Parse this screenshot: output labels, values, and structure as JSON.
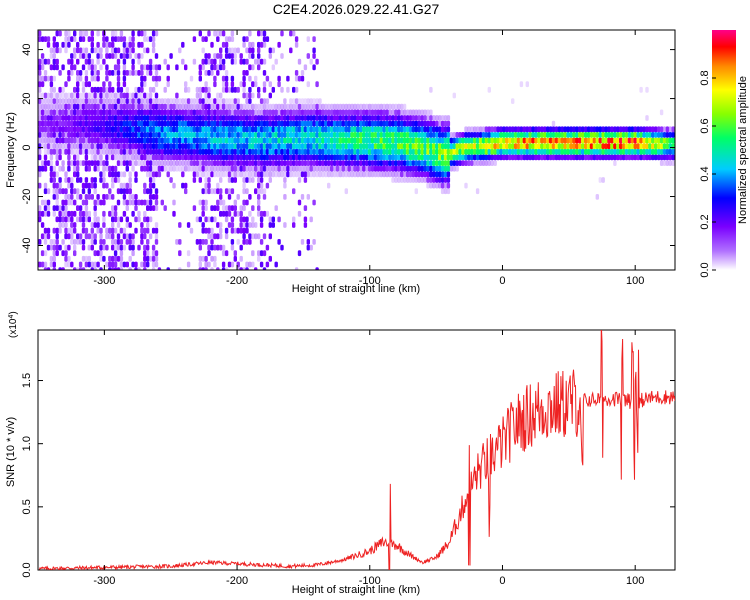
{
  "figure": {
    "title": "C2E4.2026.029.22.41.G27"
  },
  "chart_data": [
    {
      "type": "heatmap",
      "xlabel": "Height of straight line (km)",
      "ylabel": "Frequency (Hz)",
      "xlim": [
        -350,
        130
      ],
      "ylim": [
        -50,
        48
      ],
      "xticks": [
        -300,
        -200,
        -100,
        0,
        100
      ],
      "yticks": [
        -40,
        -20,
        0,
        20,
        40
      ],
      "colorbar": {
        "label": "Normalized spectral amplitude",
        "range": [
          0,
          1
        ],
        "ticks": [
          "0.0",
          "0.2",
          "0.4",
          "0.6",
          "0.8"
        ],
        "colormap": [
          "#ffffff",
          "#7a00ff",
          "#0000ff",
          "#00ffff",
          "#00ff00",
          "#ffff00",
          "#ff0000",
          "#ff00aa"
        ]
      },
      "ridge": {
        "x": [
          -350,
          -300,
          -260,
          -220,
          -180,
          -150,
          -120,
          -100,
          -80,
          -60,
          -45,
          -30,
          -10,
          0,
          30,
          60,
          100,
          130
        ],
        "frequency": [
          10,
          9,
          6,
          4,
          3,
          4,
          3,
          3,
          2,
          0,
          -3,
          0,
          1,
          2,
          2,
          2,
          2,
          1
        ],
        "peak_amplitude": [
          0.15,
          0.25,
          0.42,
          0.45,
          0.48,
          0.5,
          0.55,
          0.6,
          0.62,
          0.65,
          0.7,
          0.75,
          0.8,
          0.85,
          0.9,
          0.92,
          0.92,
          0.6
        ]
      },
      "noise_region": {
        "x_from": -350,
        "x_to": -140
      }
    },
    {
      "type": "line",
      "xlabel": "Height of straight line (km)",
      "ylabel": "SNR (10 * v/v)",
      "scale_label": "(x10^4)",
      "xlim": [
        -350,
        130
      ],
      "ylim": [
        0,
        1.9
      ],
      "xticks": [
        -300,
        -200,
        -100,
        0,
        100
      ],
      "yticks": [
        "0.0",
        "0.5",
        "1.0",
        "1.5"
      ],
      "color": "#ee2222",
      "series": [
        {
          "x": [
            -350,
            -300,
            -250,
            -230,
            -220,
            -200,
            -160,
            -140,
            -120,
            -100,
            -90,
            -80,
            -70,
            -60,
            -50,
            -40,
            -30,
            -20,
            -10,
            0,
            10,
            20,
            30,
            40,
            50,
            60,
            70,
            80,
            90,
            100,
            110,
            120,
            130
          ],
          "y": [
            0.01,
            0.02,
            0.03,
            0.05,
            0.06,
            0.05,
            0.03,
            0.04,
            0.08,
            0.15,
            0.22,
            0.2,
            0.12,
            0.06,
            0.1,
            0.22,
            0.5,
            0.75,
            0.9,
            1.0,
            1.15,
            1.22,
            1.28,
            1.3,
            1.32,
            1.34,
            1.35,
            1.36,
            1.35,
            1.33,
            1.36,
            1.37,
            1.37
          ],
          "spike_x": [
            -85,
            -25,
            -10,
            60,
            75,
            90,
            98,
            100,
            102
          ]
        }
      ]
    }
  ]
}
